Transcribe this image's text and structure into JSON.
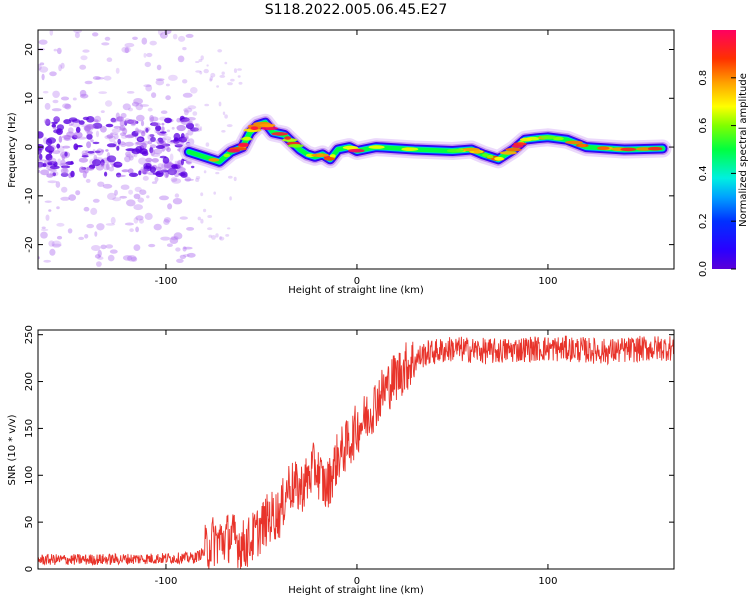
{
  "figure": {
    "title": "S118.2022.005.06.45.E27"
  },
  "chart_data": [
    {
      "type": "heatmap",
      "xlabel": "Height of straight line (km)",
      "ylabel": "Frequency (Hz)",
      "xlim": [
        -167,
        166
      ],
      "ylim": [
        -25,
        24
      ],
      "xticks": [
        -100,
        0,
        100
      ],
      "yticks": [
        -20,
        -10,
        0,
        10,
        20
      ],
      "colorbar": {
        "label": "Normalized spectral amplitude",
        "range": [
          0,
          1
        ],
        "ticks": [
          0.0,
          0.2,
          0.4,
          0.6,
          0.8
        ],
        "colormap": "rainbow"
      },
      "ridge": {
        "x": [
          -88,
          -80,
          -72,
          -66,
          -60,
          -56,
          -52,
          -48,
          -44,
          -38,
          -34,
          -30,
          -26,
          -22,
          -18,
          -14,
          -10,
          -4,
          0,
          10,
          30,
          50,
          60,
          66,
          70,
          74,
          78,
          82,
          88,
          94,
          100,
          110,
          120,
          140,
          160
        ],
        "y": [
          -1,
          -2,
          -3,
          -1,
          0,
          3,
          4.5,
          5,
          3,
          2.5,
          1,
          -0.5,
          -1.5,
          -2,
          -1.5,
          -2.5,
          -0.5,
          0,
          -0.8,
          0,
          -0.5,
          -0.8,
          -0.5,
          -1.5,
          -2,
          -2.5,
          -1.5,
          -0.5,
          1.5,
          1.8,
          2,
          1.5,
          0,
          -0.5,
          -0.3
        ]
      },
      "scatter_region": {
        "x_range": [
          -167,
          -85
        ],
        "note_free": true
      }
    },
    {
      "type": "line",
      "xlabel": "Height of straight line (km)",
      "ylabel": "SNR (10 * v/v)",
      "xlim": [
        -167,
        166
      ],
      "ylim": [
        0,
        255
      ],
      "xticks": [
        -100,
        0,
        100
      ],
      "yticks": [
        0,
        50,
        100,
        150,
        200,
        250
      ],
      "color": "#e8332a",
      "series": [
        {
          "x": [
            -167,
            -140,
            -110,
            -85,
            -80,
            -76,
            -72,
            -66,
            -60,
            -56,
            -50,
            -46,
            -40,
            -36,
            -30,
            -26,
            -22,
            -16,
            -10,
            -4,
            0,
            6,
            12,
            20,
            28,
            36,
            50,
            70,
            90,
            110,
            130,
            150,
            166
          ],
          "y": [
            10,
            10,
            11,
            12,
            18,
            30,
            30,
            35,
            25,
            30,
            45,
            55,
            60,
            90,
            85,
            95,
            110,
            85,
            120,
            135,
            150,
            165,
            185,
            205,
            220,
            230,
            235,
            232,
            235,
            235,
            232,
            235,
            236
          ]
        }
      ]
    }
  ]
}
